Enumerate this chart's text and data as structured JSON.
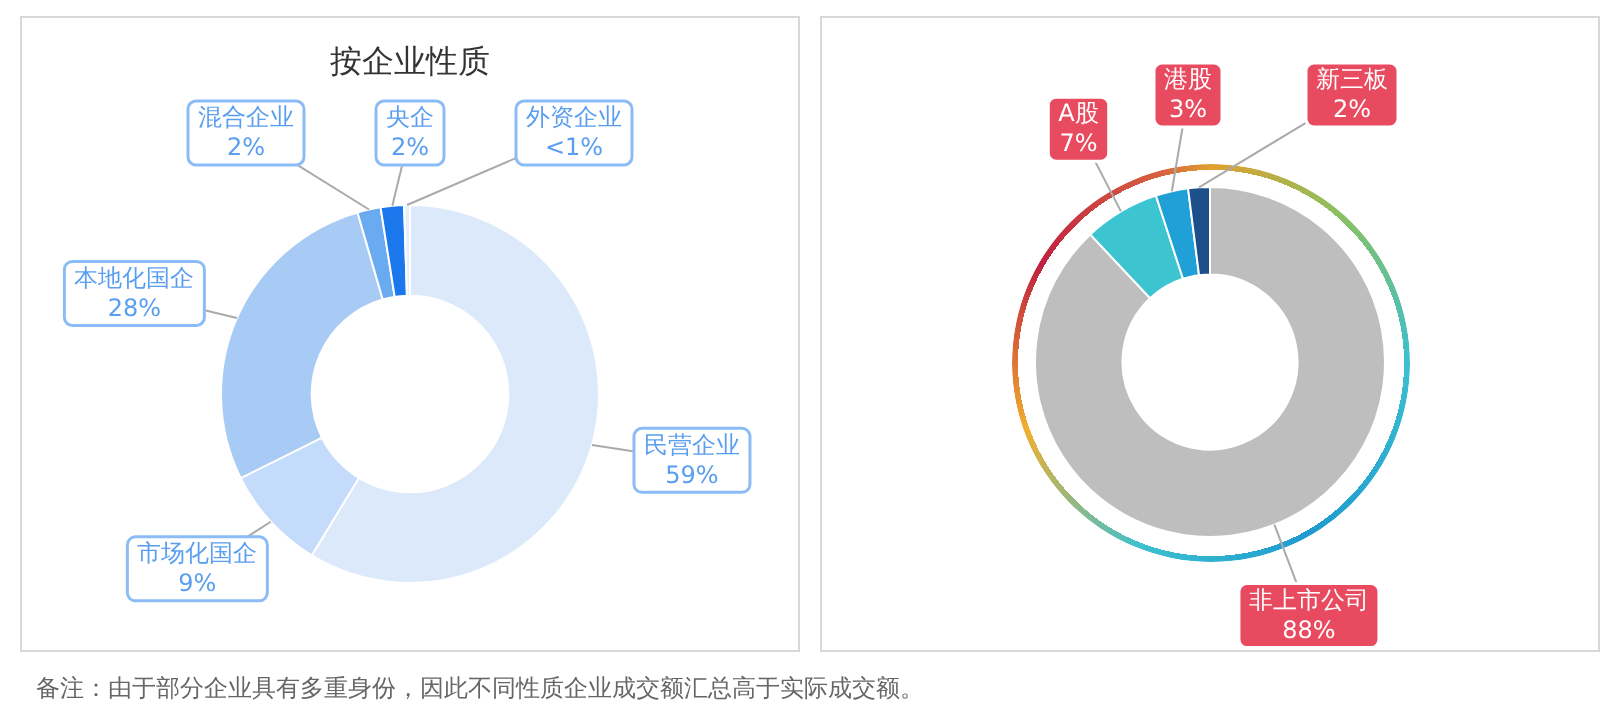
{
  "chart_data": [
    {
      "type": "donut",
      "title": "按企业性质",
      "categories": [
        "民营企业",
        "市场化国企",
        "本地化国企",
        "混合企业",
        "央企",
        "外资企业"
      ],
      "values": [
        59,
        9,
        28,
        2,
        2,
        0.5
      ],
      "value_labels": [
        "59%",
        "9%",
        "28%",
        "2%",
        "2%",
        "<1%"
      ],
      "colors": [
        "#dce9fb",
        "#c4dbfb",
        "#a8cbf6",
        "#6aaaf0",
        "#1a78ec",
        "#e6effb"
      ],
      "legend": false,
      "annotations": [
        "备注：由于部分企业具有多重身份，因此不同性质企业成交额汇总高于实际成交额。"
      ]
    },
    {
      "type": "donut",
      "categories": [
        "非上市公司",
        "A股",
        "港股",
        "新三板"
      ],
      "values": [
        88,
        7,
        3,
        2
      ],
      "value_labels": [
        "88%",
        "7%",
        "3%",
        "2%"
      ],
      "colors": [
        "#bebebe",
        "#3cc4d0",
        "#1fa0d6",
        "#1d4f8a"
      ],
      "legend": false
    }
  ]
}
